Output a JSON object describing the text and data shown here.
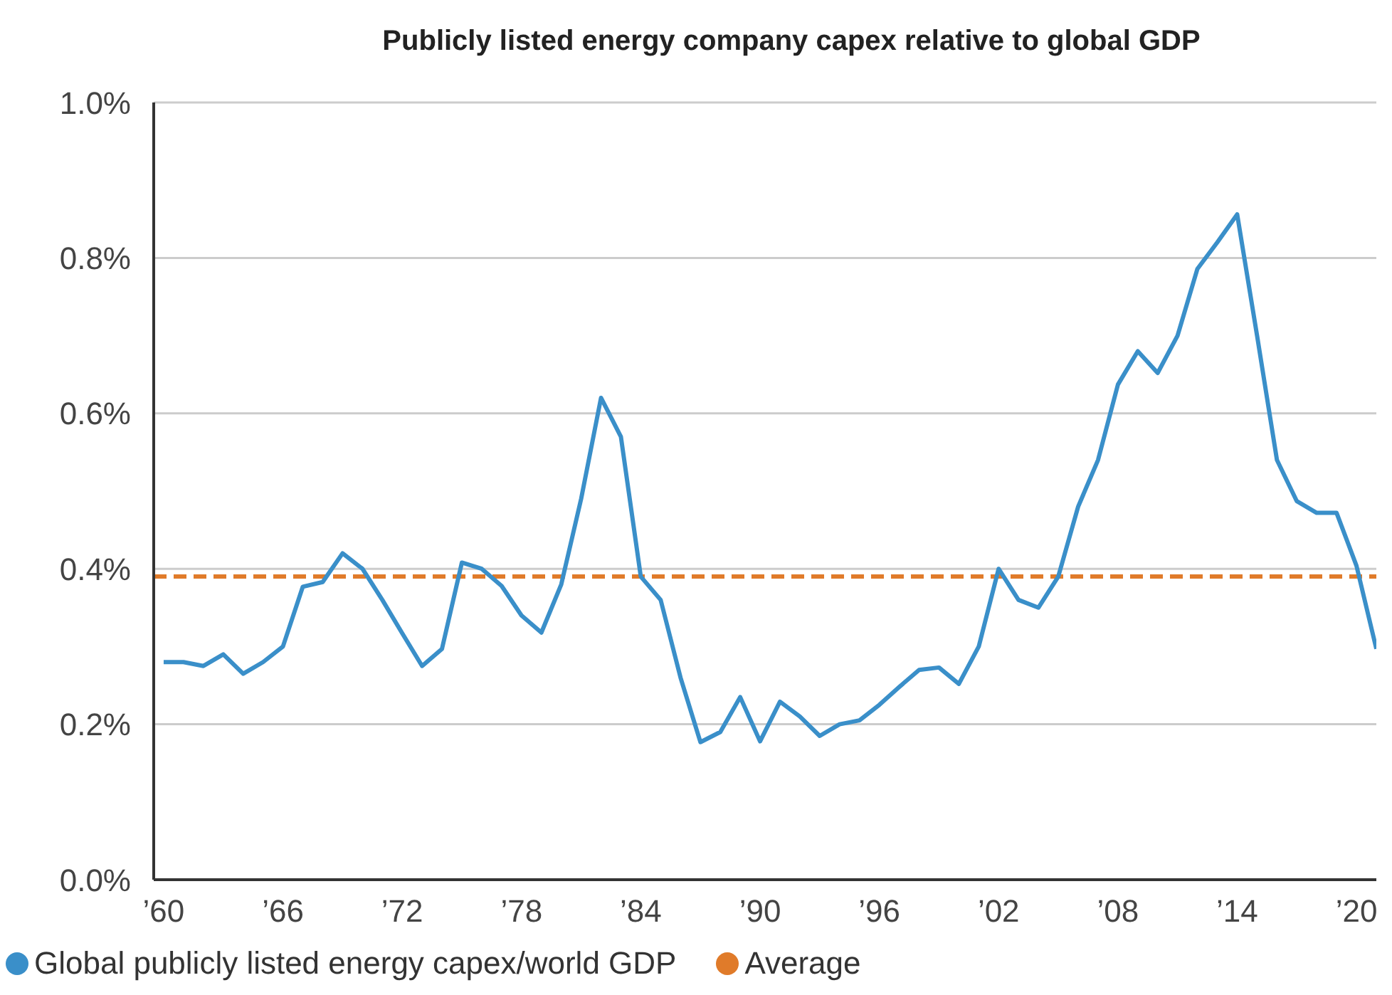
{
  "chart_data": {
    "type": "line",
    "title": "Publicly listed energy company capex relative to global GDP",
    "x": [
      1960,
      1961,
      1962,
      1963,
      1964,
      1965,
      1966,
      1967,
      1968,
      1969,
      1970,
      1971,
      1972,
      1973,
      1974,
      1975,
      1976,
      1977,
      1978,
      1979,
      1980,
      1981,
      1982,
      1983,
      1984,
      1985,
      1986,
      1987,
      1988,
      1989,
      1990,
      1991,
      1992,
      1993,
      1994,
      1995,
      1996,
      1997,
      1998,
      1999,
      2000,
      2001,
      2002,
      2003,
      2004,
      2005,
      2006,
      2007,
      2008,
      2009,
      2010,
      2011,
      2012,
      2013,
      2014,
      2015,
      2016,
      2017,
      2018,
      2019,
      2020,
      2021
    ],
    "series": [
      {
        "name": "Global publicly listed energy capex/world GDP",
        "color": "#3a8fc9",
        "values": [
          0.28,
          0.28,
          0.275,
          0.29,
          0.265,
          0.28,
          0.3,
          0.377,
          0.383,
          0.42,
          0.4,
          0.36,
          0.317,
          0.275,
          0.297,
          0.408,
          0.4,
          0.378,
          0.34,
          0.318,
          0.38,
          0.49,
          0.62,
          0.57,
          0.39,
          0.36,
          0.26,
          0.177,
          0.19,
          0.235,
          0.178,
          0.229,
          0.21,
          0.185,
          0.2,
          0.205,
          0.225,
          0.248,
          0.27,
          0.273,
          0.252,
          0.3,
          0.4,
          0.36,
          0.35,
          0.39,
          0.48,
          0.54,
          0.637,
          0.68,
          0.652,
          0.7,
          0.786,
          0.82,
          0.856,
          0.7,
          0.54,
          0.487,
          0.472,
          0.472,
          0.404,
          0.297
        ]
      }
    ],
    "ref_lines": [
      {
        "axis": "y",
        "value": 0.39,
        "label": "Average",
        "color": "#e07b2a",
        "line_style": "dashed"
      }
    ],
    "xlim": [
      1959.5,
      2021
    ],
    "xticks": [
      {
        "value": 1960,
        "label": "’60"
      },
      {
        "value": 1966,
        "label": "’66"
      },
      {
        "value": 1972,
        "label": "’72"
      },
      {
        "value": 1978,
        "label": "’78"
      },
      {
        "value": 1984,
        "label": "’84"
      },
      {
        "value": 1990,
        "label": "’90"
      },
      {
        "value": 1996,
        "label": "’96"
      },
      {
        "value": 2002,
        "label": "’02"
      },
      {
        "value": 2008,
        "label": "’08"
      },
      {
        "value": 2014,
        "label": "’14"
      },
      {
        "value": 2020,
        "label": "’20"
      }
    ],
    "ylim": [
      0,
      1.0
    ],
    "yticks": [
      {
        "value": 0,
        "label": "0.0%"
      },
      {
        "value": 0.2,
        "label": "0.2%"
      },
      {
        "value": 0.4,
        "label": "0.4%"
      },
      {
        "value": 0.6,
        "label": "0.6%"
      },
      {
        "value": 0.8,
        "label": "0.8%"
      },
      {
        "value": 1.0,
        "label": "1.0%"
      }
    ],
    "grid": "y",
    "legend": "bottom",
    "marker": "none",
    "line_style": "solid"
  }
}
